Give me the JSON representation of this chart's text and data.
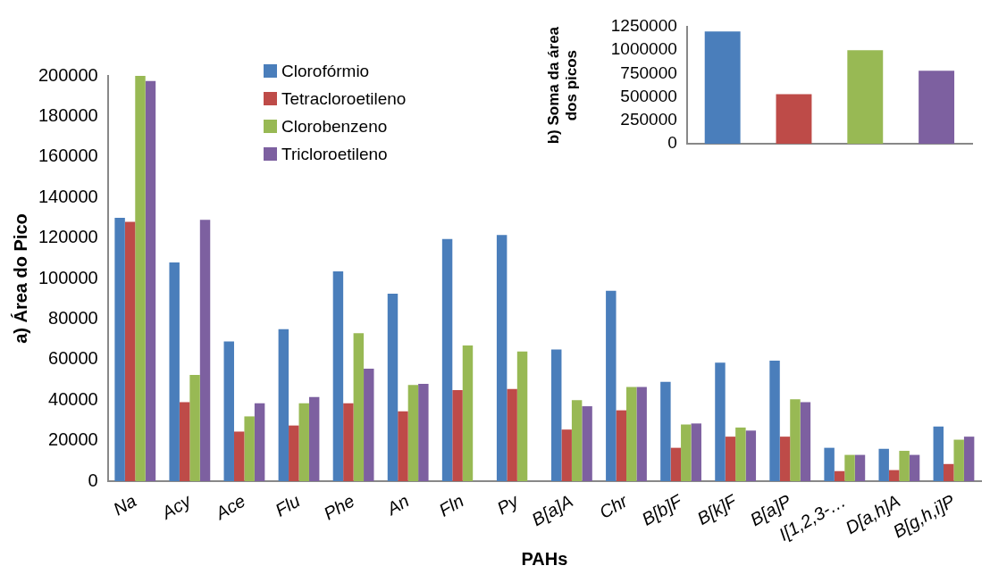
{
  "chart_data": [
    {
      "type": "bar",
      "xlabel": "PAHs",
      "ylabel": "a) Área do Pico",
      "categories": [
        "Na",
        "Acy",
        "Ace",
        "Flu",
        "Phe",
        "An",
        "Fln",
        "Py",
        "B[a]A",
        "Chr",
        "B[b]F",
        "B[k]F",
        "B[a]P",
        "I[1,2,3-…",
        "D[a,h]A",
        "B[g,h,i]P"
      ],
      "series": [
        {
          "name": "Clorofórmio",
          "color": "#4a7ebb",
          "values": [
            130000,
            108000,
            69000,
            75000,
            103500,
            92500,
            119500,
            121500,
            65000,
            94000,
            49000,
            58500,
            59500,
            16500,
            16000,
            27000
          ]
        },
        {
          "name": "Tetracloroetileno",
          "color": "#be4b48",
          "values": [
            128000,
            39000,
            24500,
            27500,
            38500,
            34500,
            45000,
            45500,
            25500,
            35000,
            16500,
            22000,
            22000,
            5000,
            5500,
            8500
          ]
        },
        {
          "name": "Clorobenzeno",
          "color": "#98b954",
          "values": [
            200000,
            52500,
            32000,
            38500,
            73000,
            47500,
            67000,
            64000,
            40000,
            46500,
            28000,
            26500,
            40500,
            13000,
            15000,
            20500
          ]
        },
        {
          "name": "Tricloroetileno",
          "color": "#7d60a0",
          "values": [
            197500,
            129000,
            38500,
            41500,
            55500,
            48000,
            null,
            null,
            37000,
            46500,
            28500,
            25000,
            39000,
            13000,
            13000,
            22000
          ]
        }
      ],
      "ylim": [
        0,
        200000
      ],
      "yticks": [
        0,
        20000,
        40000,
        60000,
        80000,
        100000,
        120000,
        140000,
        160000,
        180000,
        200000
      ],
      "grid": false,
      "legend": "top"
    },
    {
      "type": "bar",
      "ylabel": "b) Soma da área dos picos",
      "categories": [
        null,
        null,
        null,
        null
      ],
      "values": [
        1200000,
        530000,
        1000000,
        780000
      ],
      "colors": [
        "#4a7ebb",
        "#be4b48",
        "#98b954",
        "#7d60a0"
      ],
      "ylim": [
        0,
        1250000
      ],
      "yticks": [
        0,
        250000,
        500000,
        750000,
        1000000,
        1250000
      ],
      "grid": false
    }
  ]
}
